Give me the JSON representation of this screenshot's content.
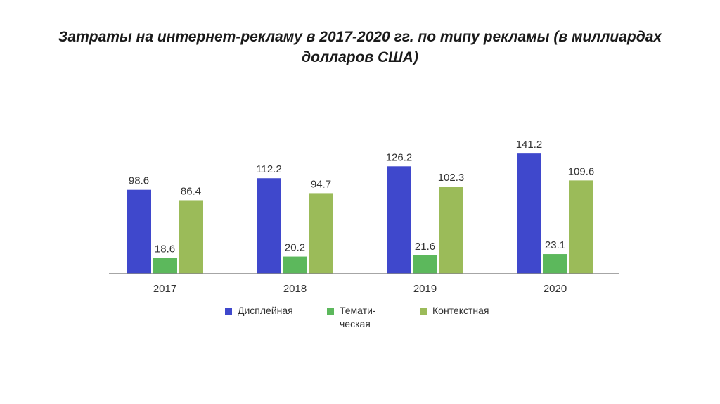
{
  "chart_data": {
    "type": "bar",
    "title": "Затраты на интернет-рекламу в 2017-2020 гг. по типу рекламы (в миллиардах долларов США)",
    "categories": [
      "2017",
      "2018",
      "2019",
      "2020"
    ],
    "series": [
      {
        "name": "Дисплейная",
        "color": "#3f48cc",
        "values": [
          98.6,
          112.2,
          126.2,
          141.2
        ],
        "labels": [
          "98.6",
          "112.2",
          "126.2",
          "141.2"
        ]
      },
      {
        "name_lines": [
          "Темати-",
          "ческая"
        ],
        "color": "#5cb85c",
        "values": [
          18.6,
          20.2,
          21.6,
          23.1
        ],
        "labels": [
          "18.6",
          "20.2",
          "21.6",
          "23.1"
        ]
      },
      {
        "name": "Контекстная",
        "color": "#9bbb59",
        "values": [
          86.4,
          94.7,
          102.3,
          109.6
        ],
        "labels": [
          "86.4",
          "94.7",
          "102.3",
          "109.6"
        ]
      }
    ],
    "ylim": [
      0,
      160
    ],
    "grid": false,
    "legend_position": "bottom"
  }
}
